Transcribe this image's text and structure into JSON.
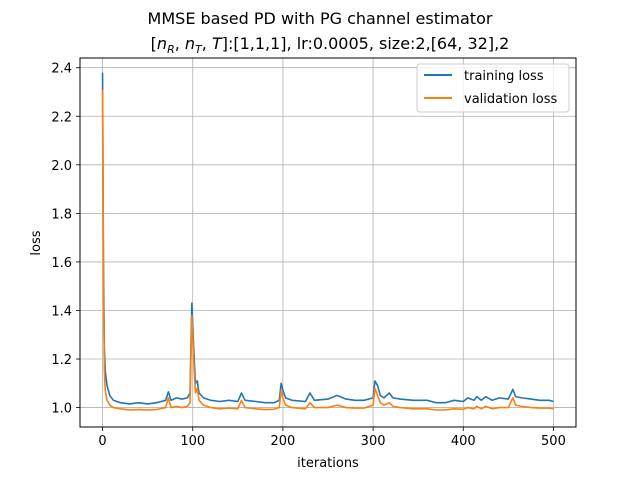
{
  "chart_data": {
    "type": "line",
    "title": {
      "line1": "MMSE based PD with PG channel estimator",
      "line2_prefix": "[",
      "line2_nR_base": "n",
      "line2_nR_sub": "R",
      "line2_sep1": ", ",
      "line2_nT_base": "n",
      "line2_nT_sub": "T",
      "line2_sep2": ", ",
      "line2_T": "T",
      "line2_suffix": "]:[1,1,1], lr:0.0005, size:2,[64, 32],2"
    },
    "xlabel": "iterations",
    "ylabel": "loss",
    "xlim": [
      -25,
      525
    ],
    "ylim": [
      0.92,
      2.44
    ],
    "xticks": [
      0,
      100,
      200,
      300,
      400,
      500
    ],
    "yticks": [
      1.0,
      1.2,
      1.4,
      1.6,
      1.8,
      2.0,
      2.2,
      2.4
    ],
    "ytick_labels": [
      "1.0",
      "1.2",
      "1.4",
      "1.6",
      "1.8",
      "2.0",
      "2.2",
      "2.4"
    ],
    "xtick_labels": [
      "0",
      "100",
      "200",
      "300",
      "400",
      "500"
    ],
    "grid": true,
    "legend_position": "top-right",
    "series": [
      {
        "name": "training loss",
        "color": "#1f77b4",
        "points": [
          [
            0,
            2.38
          ],
          [
            1,
            1.6
          ],
          [
            2,
            1.25
          ],
          [
            3,
            1.15
          ],
          [
            5,
            1.09
          ],
          [
            8,
            1.05
          ],
          [
            12,
            1.03
          ],
          [
            20,
            1.02
          ],
          [
            30,
            1.015
          ],
          [
            40,
            1.02
          ],
          [
            50,
            1.015
          ],
          [
            60,
            1.02
          ],
          [
            70,
            1.03
          ],
          [
            73,
            1.065
          ],
          [
            76,
            1.03
          ],
          [
            82,
            1.04
          ],
          [
            88,
            1.035
          ],
          [
            94,
            1.04
          ],
          [
            97,
            1.06
          ],
          [
            99,
            1.43
          ],
          [
            101,
            1.25
          ],
          [
            103,
            1.1
          ],
          [
            105,
            1.11
          ],
          [
            107,
            1.06
          ],
          [
            112,
            1.04
          ],
          [
            120,
            1.03
          ],
          [
            130,
            1.025
          ],
          [
            140,
            1.03
          ],
          [
            150,
            1.025
          ],
          [
            154,
            1.06
          ],
          [
            158,
            1.03
          ],
          [
            170,
            1.025
          ],
          [
            180,
            1.02
          ],
          [
            190,
            1.02
          ],
          [
            196,
            1.03
          ],
          [
            198,
            1.1
          ],
          [
            200,
            1.07
          ],
          [
            203,
            1.04
          ],
          [
            210,
            1.03
          ],
          [
            225,
            1.025
          ],
          [
            230,
            1.06
          ],
          [
            235,
            1.03
          ],
          [
            250,
            1.035
          ],
          [
            260,
            1.05
          ],
          [
            270,
            1.035
          ],
          [
            280,
            1.03
          ],
          [
            290,
            1.03
          ],
          [
            300,
            1.04
          ],
          [
            302,
            1.11
          ],
          [
            305,
            1.09
          ],
          [
            308,
            1.05
          ],
          [
            312,
            1.04
          ],
          [
            318,
            1.06
          ],
          [
            322,
            1.04
          ],
          [
            330,
            1.035
          ],
          [
            345,
            1.03
          ],
          [
            360,
            1.03
          ],
          [
            370,
            1.02
          ],
          [
            380,
            1.02
          ],
          [
            390,
            1.03
          ],
          [
            400,
            1.025
          ],
          [
            405,
            1.04
          ],
          [
            412,
            1.03
          ],
          [
            415,
            1.045
          ],
          [
            420,
            1.03
          ],
          [
            425,
            1.045
          ],
          [
            432,
            1.03
          ],
          [
            440,
            1.04
          ],
          [
            450,
            1.035
          ],
          [
            455,
            1.075
          ],
          [
            458,
            1.045
          ],
          [
            465,
            1.04
          ],
          [
            475,
            1.035
          ],
          [
            485,
            1.03
          ],
          [
            495,
            1.03
          ],
          [
            500,
            1.025
          ]
        ]
      },
      {
        "name": "validation loss",
        "color": "#ff7f0e",
        "points": [
          [
            0,
            2.31
          ],
          [
            1,
            1.5
          ],
          [
            2,
            1.15
          ],
          [
            3,
            1.07
          ],
          [
            5,
            1.03
          ],
          [
            8,
            1.01
          ],
          [
            12,
            1.0
          ],
          [
            20,
            0.995
          ],
          [
            30,
            0.99
          ],
          [
            40,
            0.992
          ],
          [
            50,
            0.99
          ],
          [
            60,
            0.992
          ],
          [
            70,
            1.0
          ],
          [
            73,
            1.04
          ],
          [
            76,
            1.0
          ],
          [
            82,
            1.005
          ],
          [
            88,
            1.0
          ],
          [
            94,
            1.005
          ],
          [
            97,
            1.02
          ],
          [
            99,
            1.38
          ],
          [
            101,
            1.2
          ],
          [
            103,
            1.06
          ],
          [
            105,
            1.08
          ],
          [
            107,
            1.03
          ],
          [
            112,
            1.01
          ],
          [
            120,
            1.0
          ],
          [
            130,
            0.995
          ],
          [
            140,
            0.998
          ],
          [
            150,
            0.995
          ],
          [
            154,
            1.03
          ],
          [
            158,
            1.0
          ],
          [
            170,
            0.995
          ],
          [
            180,
            0.992
          ],
          [
            190,
            0.993
          ],
          [
            196,
            1.0
          ],
          [
            198,
            1.07
          ],
          [
            200,
            1.04
          ],
          [
            203,
            1.01
          ],
          [
            210,
            1.0
          ],
          [
            225,
            0.995
          ],
          [
            230,
            1.02
          ],
          [
            235,
            1.0
          ],
          [
            250,
            1.0
          ],
          [
            260,
            1.01
          ],
          [
            270,
            1.0
          ],
          [
            280,
            0.998
          ],
          [
            290,
            0.998
          ],
          [
            300,
            1.01
          ],
          [
            302,
            1.08
          ],
          [
            305,
            1.05
          ],
          [
            308,
            1.02
          ],
          [
            312,
            1.01
          ],
          [
            318,
            1.02
          ],
          [
            322,
            1.005
          ],
          [
            330,
            1.0
          ],
          [
            345,
            0.995
          ],
          [
            360,
            0.995
          ],
          [
            370,
            0.99
          ],
          [
            380,
            0.99
          ],
          [
            390,
            0.995
          ],
          [
            400,
            0.993
          ],
          [
            405,
            1.0
          ],
          [
            412,
            0.995
          ],
          [
            415,
            1.005
          ],
          [
            420,
            0.995
          ],
          [
            425,
            1.005
          ],
          [
            432,
            0.995
          ],
          [
            440,
            1.0
          ],
          [
            450,
            1.0
          ],
          [
            455,
            1.04
          ],
          [
            458,
            1.01
          ],
          [
            465,
            1.005
          ],
          [
            475,
            1.0
          ],
          [
            485,
            0.998
          ],
          [
            495,
            0.998
          ],
          [
            500,
            0.995
          ]
        ]
      }
    ]
  }
}
